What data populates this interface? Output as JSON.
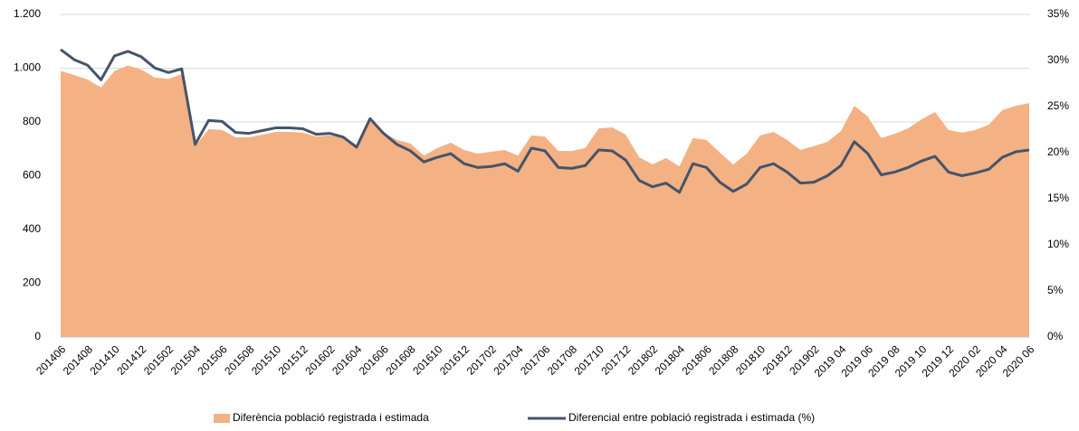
{
  "chart_data": {
    "type": "area-line",
    "categories": [
      "201406",
      null,
      "201408",
      null,
      "201410",
      null,
      "201412",
      null,
      "201502",
      null,
      "201504",
      null,
      "201506",
      null,
      "201508",
      null,
      "201510",
      null,
      "201512",
      null,
      "201602",
      null,
      "201604",
      null,
      "201606",
      null,
      "201608",
      null,
      "201610",
      null,
      "201612",
      null,
      "201702",
      null,
      "201704",
      null,
      "201706",
      null,
      "201708",
      null,
      "201710",
      null,
      "201712",
      null,
      "201802",
      null,
      "201804",
      null,
      "201806",
      null,
      "201808",
      null,
      "201810",
      null,
      "201812",
      null,
      "201902",
      null,
      "2019 04",
      null,
      "2019 06",
      null,
      "2019 08",
      null,
      "2019 10",
      null,
      "2019 12",
      null,
      "2020 02",
      null,
      "2020 04",
      null,
      "2020 06"
    ],
    "series": [
      {
        "name": "Diferència població registrada i estimada",
        "color": "#f4b183",
        "type": "area",
        "values": [
          990,
          975,
          958,
          928,
          990,
          1010,
          995,
          965,
          960,
          978,
          710,
          773,
          770,
          743,
          743,
          753,
          763,
          763,
          760,
          746,
          750,
          743,
          710,
          803,
          760,
          733,
          720,
          675,
          703,
          723,
          696,
          682,
          689,
          696,
          675,
          750,
          746,
          692,
          692,
          703,
          776,
          780,
          753,
          669,
          642,
          666,
          635,
          740,
          733,
          686,
          642,
          682,
          750,
          763,
          733,
          696,
          710,
          726,
          766,
          860,
          820,
          740,
          756,
          776,
          810,
          837,
          770,
          760,
          770,
          790,
          844,
          860,
          870
        ]
      },
      {
        "name": "Diferencial entre població registrada i estimada (%)",
        "color": "#44546a",
        "type": "line",
        "axis": "y2",
        "values": [
          31.2,
          30.1,
          29.5,
          27.9,
          30.5,
          31.0,
          30.4,
          29.2,
          28.7,
          29.1,
          20.9,
          23.5,
          23.4,
          22.2,
          22.1,
          22.4,
          22.7,
          22.7,
          22.6,
          22.0,
          22.1,
          21.7,
          20.6,
          23.7,
          22.1,
          20.9,
          20.2,
          19.0,
          19.5,
          19.9,
          18.8,
          18.4,
          18.5,
          18.8,
          18.0,
          20.5,
          20.2,
          18.4,
          18.3,
          18.6,
          20.3,
          20.2,
          19.2,
          17.0,
          16.3,
          16.7,
          15.7,
          18.8,
          18.4,
          16.8,
          15.8,
          16.6,
          18.4,
          18.8,
          17.9,
          16.7,
          16.8,
          17.5,
          18.6,
          21.2,
          19.9,
          17.6,
          17.9,
          18.4,
          19.1,
          19.6,
          17.9,
          17.5,
          17.8,
          18.2,
          19.5,
          20.1,
          20.3
        ]
      }
    ],
    "ylim": [
      0,
      1200
    ],
    "yticks": [
      0,
      200,
      400,
      600,
      800,
      {
        "value": 1000,
        "label": "1.000"
      },
      {
        "value": 1200,
        "label": "1.200"
      }
    ],
    "y2lim": [
      0,
      35
    ],
    "y2ticks": [
      {
        "value": 0,
        "label": "0%"
      },
      {
        "value": 5,
        "label": "5%"
      },
      {
        "value": 10,
        "label": "10%"
      },
      {
        "value": 15,
        "label": "15%"
      },
      {
        "value": 20,
        "label": "20%"
      },
      {
        "value": 25,
        "label": "25%"
      },
      {
        "value": 30,
        "label": "30%"
      },
      {
        "value": 35,
        "label": "35%"
      }
    ],
    "grid": true,
    "legend": "bottom"
  }
}
